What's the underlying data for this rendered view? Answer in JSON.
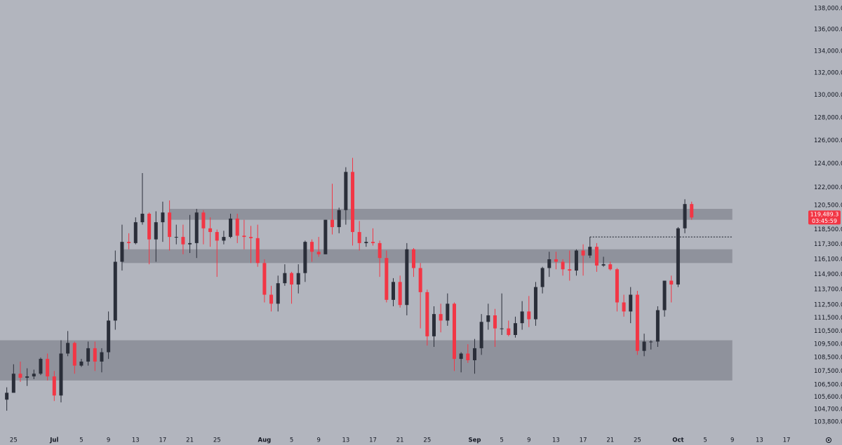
{
  "chart_data": {
    "type": "candlestick",
    "log_scale": true,
    "grid": false,
    "up_color": "#2a2e39",
    "down_color": "#f23645",
    "zone_color": "#787b86",
    "x": [
      "Jun 24",
      "Jun 25",
      "Jun 26",
      "Jun 27",
      "Jun 28",
      "Jun 29",
      "Jun 30",
      "Jul 1",
      "Jul 2",
      "Jul 3",
      "Jul 4",
      "Jul 5",
      "Jul 6",
      "Jul 7",
      "Jul 8",
      "Jul 9",
      "Jul 10",
      "Jul 11",
      "Jul 12",
      "Jul 13",
      "Jul 14",
      "Jul 15",
      "Jul 16",
      "Jul 17",
      "Jul 18",
      "Jul 19",
      "Jul 20",
      "Jul 21",
      "Jul 22",
      "Jul 23",
      "Jul 24",
      "Jul 25",
      "Jul 26",
      "Jul 27",
      "Jul 28",
      "Jul 29",
      "Jul 30",
      "Jul 31",
      "Aug 1",
      "Aug 2",
      "Aug 3",
      "Aug 4",
      "Aug 5",
      "Aug 6",
      "Aug 7",
      "Aug 8",
      "Aug 9",
      "Aug 10",
      "Aug 11",
      "Aug 12",
      "Aug 13",
      "Aug 14",
      "Aug 15",
      "Aug 16",
      "Aug 17",
      "Aug 18",
      "Aug 19",
      "Aug 20",
      "Aug 21",
      "Aug 22",
      "Aug 23",
      "Aug 24",
      "Aug 25",
      "Aug 26",
      "Aug 27",
      "Aug 28",
      "Aug 29",
      "Aug 30",
      "Aug 31",
      "Sep 1",
      "Sep 2",
      "Sep 3",
      "Sep 4",
      "Sep 5",
      "Sep 6",
      "Sep 7",
      "Sep 8",
      "Sep 9",
      "Sep 10",
      "Sep 11",
      "Sep 12",
      "Sep 13",
      "Sep 14",
      "Sep 15",
      "Sep 16",
      "Sep 17",
      "Sep 18",
      "Sep 19",
      "Sep 20",
      "Sep 21",
      "Sep 22",
      "Sep 23",
      "Sep 24",
      "Sep 25",
      "Sep 26",
      "Sep 27",
      "Sep 28",
      "Sep 29",
      "Sep 30",
      "Oct 1",
      "Oct 2",
      "Oct 3"
    ],
    "open": [
      105400,
      105900,
      107300,
      107000,
      107100,
      107300,
      108400,
      107100,
      105700,
      108800,
      109600,
      107900,
      108200,
      109200,
      108200,
      108900,
      111300,
      115900,
      117500,
      117400,
      119100,
      119800,
      117700,
      119100,
      119900,
      117900,
      117900,
      117300,
      117400,
      119900,
      118600,
      118300,
      117600,
      117900,
      119400,
      118000,
      117900,
      117800,
      115800,
      113300,
      112600,
      114200,
      115000,
      114100,
      115000,
      117500,
      116700,
      116500,
      119300,
      118700,
      120100,
      123300,
      118300,
      117400,
      117500,
      117400,
      116200,
      112900,
      114300,
      112500,
      116900,
      115400,
      113500,
      110100,
      111800,
      111300,
      112600,
      108400,
      108800,
      108300,
      109200,
      111200,
      111700,
      110700,
      110700,
      110200,
      111100,
      112000,
      111400,
      113900,
      115400,
      116100,
      115900,
      115300,
      115200,
      116800,
      116400,
      117100,
      115600,
      115700,
      115300,
      112700,
      112000,
      113300,
      109000,
      109700,
      109700,
      112100,
      114400,
      114100,
      118600,
      120600
    ],
    "high": [
      106300,
      108000,
      108200,
      107700,
      107600,
      108500,
      108800,
      107500,
      109800,
      110500,
      109700,
      108400,
      109700,
      109700,
      109200,
      112000,
      116800,
      118900,
      118200,
      119500,
      123200,
      119900,
      120000,
      120800,
      120900,
      118900,
      118900,
      119700,
      120200,
      120100,
      119500,
      118500,
      118400,
      119800,
      119800,
      119300,
      118800,
      118900,
      116100,
      114000,
      114800,
      115700,
      115100,
      115700,
      117600,
      117700,
      117900,
      119300,
      122300,
      120300,
      123700,
      124500,
      119200,
      117900,
      118600,
      117600,
      116800,
      114600,
      114800,
      117400,
      117000,
      115800,
      113700,
      112400,
      112600,
      113400,
      112700,
      108900,
      109500,
      109900,
      111800,
      112600,
      112200,
      113400,
      111300,
      111600,
      112800,
      113200,
      114300,
      115500,
      116700,
      116700,
      116100,
      116800,
      116900,
      117300,
      117900,
      117400,
      116300,
      115900,
      115400,
      113300,
      113900,
      113600,
      110300,
      109800,
      112400,
      114400,
      114800,
      118700,
      121000,
      120800
    ],
    "low": [
      104600,
      105900,
      106700,
      106400,
      106900,
      107200,
      106800,
      105300,
      105200,
      108600,
      107300,
      107800,
      107900,
      107500,
      107400,
      108400,
      110600,
      115200,
      116900,
      117300,
      118900,
      115700,
      115900,
      117500,
      116800,
      117300,
      116500,
      116600,
      116200,
      117300,
      117100,
      114700,
      117300,
      117800,
      117400,
      116900,
      115800,
      115500,
      112700,
      112000,
      112000,
      114000,
      112600,
      113400,
      114300,
      115900,
      116300,
      116500,
      118100,
      118200,
      118900,
      117200,
      116800,
      117100,
      117200,
      114700,
      112700,
      112400,
      112300,
      111700,
      114700,
      110700,
      109400,
      109300,
      110400,
      110900,
      107500,
      107400,
      108100,
      107300,
      108700,
      110600,
      109300,
      110200,
      110100,
      110000,
      110600,
      110800,
      110900,
      113400,
      114700,
      115300,
      114800,
      114400,
      114800,
      114800,
      116200,
      115100,
      115500,
      115200,
      112000,
      111600,
      111100,
      108700,
      108600,
      109100,
      109300,
      111600,
      112700,
      113900,
      118200,
      119300
    ],
    "close": [
      105900,
      107300,
      107000,
      107100,
      107300,
      108400,
      107100,
      105700,
      108800,
      109600,
      107900,
      108200,
      109200,
      108200,
      108900,
      111300,
      115900,
      117500,
      117400,
      119100,
      119800,
      117700,
      119100,
      119900,
      117900,
      117900,
      117300,
      117400,
      119900,
      118600,
      118300,
      117600,
      117900,
      119400,
      118000,
      117900,
      117800,
      115800,
      113300,
      112600,
      114200,
      115000,
      114100,
      115000,
      117500,
      116700,
      116500,
      119300,
      118700,
      120100,
      123300,
      118300,
      117400,
      117500,
      117400,
      116200,
      112900,
      114300,
      112500,
      116900,
      115400,
      113500,
      110100,
      111800,
      111300,
      112600,
      108400,
      108800,
      108300,
      109200,
      111200,
      111700,
      110700,
      110700,
      110200,
      111100,
      112000,
      111400,
      113900,
      115400,
      116100,
      115900,
      115300,
      115200,
      116800,
      116400,
      117100,
      115600,
      115700,
      115300,
      112700,
      112000,
      113300,
      109000,
      109700,
      109700,
      112100,
      114400,
      114100,
      118600,
      120600,
      119489.3
    ],
    "price_label": "119,489.3",
    "countdown": "03:45:59",
    "zones": [
      {
        "low": 119300,
        "high": 120200,
        "start": "Jul 18",
        "end": "Oct 9"
      },
      {
        "low": 115800,
        "high": 116900,
        "start": "Jul 11",
        "end": "Oct 9"
      },
      {
        "low": 106800,
        "high": 109800,
        "start": "Jun 23",
        "end": "Oct 9"
      }
    ],
    "levels": [
      {
        "value": 117900,
        "start": "Sep 18",
        "end": "Oct 9"
      }
    ],
    "xlim": [
      "Jun 23",
      "Oct 20"
    ],
    "xticks": [
      {
        "value": "Jun 25",
        "label": "25"
      },
      {
        "value": "Jul 1",
        "label": "Jul"
      },
      {
        "value": "Jul 5",
        "label": "5"
      },
      {
        "value": "Jul 9",
        "label": "9"
      },
      {
        "value": "Jul 13",
        "label": "13"
      },
      {
        "value": "Jul 17",
        "label": "17"
      },
      {
        "value": "Jul 21",
        "label": "21"
      },
      {
        "value": "Jul 25",
        "label": "25"
      },
      {
        "value": "Aug 1",
        "label": "Aug"
      },
      {
        "value": "Aug 5",
        "label": "5"
      },
      {
        "value": "Aug 9",
        "label": "9"
      },
      {
        "value": "Aug 13",
        "label": "13"
      },
      {
        "value": "Aug 17",
        "label": "17"
      },
      {
        "value": "Aug 21",
        "label": "21"
      },
      {
        "value": "Aug 25",
        "label": "25"
      },
      {
        "value": "Sep 1",
        "label": "Sep"
      },
      {
        "value": "Sep 5",
        "label": "5"
      },
      {
        "value": "Sep 9",
        "label": "9"
      },
      {
        "value": "Sep 13",
        "label": "13"
      },
      {
        "value": "Sep 17",
        "label": "17"
      },
      {
        "value": "Sep 21",
        "label": "21"
      },
      {
        "value": "Sep 25",
        "label": "25"
      },
      {
        "value": "Oct 1",
        "label": "Oct"
      },
      {
        "value": "Oct 5",
        "label": "5"
      },
      {
        "value": "Oct 9",
        "label": "9"
      },
      {
        "value": "Oct 13",
        "label": "13"
      },
      {
        "value": "Oct 17",
        "label": "17"
      }
    ],
    "ylim": [
      102900,
      138800
    ],
    "yticks": [
      {
        "value": 138000,
        "label": "138,000.0"
      },
      {
        "value": 136000,
        "label": "136,000.0"
      },
      {
        "value": 134000,
        "label": "134,000.0"
      },
      {
        "value": 132000,
        "label": "132,000.0"
      },
      {
        "value": 130000,
        "label": "130,000.0"
      },
      {
        "value": 128000,
        "label": "128,000.0"
      },
      {
        "value": 126000,
        "label": "126,000.0"
      },
      {
        "value": 124000,
        "label": "124,000.0"
      },
      {
        "value": 122000,
        "label": "122,000.0"
      },
      {
        "value": 120500,
        "label": "120,500.0"
      },
      {
        "value": 118500,
        "label": "118,500.0"
      },
      {
        "value": 117300,
        "label": "117,300.0"
      },
      {
        "value": 116100,
        "label": "116,100.0"
      },
      {
        "value": 114900,
        "label": "114,900.0"
      },
      {
        "value": 113700,
        "label": "113,700.0"
      },
      {
        "value": 112500,
        "label": "112,500.0"
      },
      {
        "value": 111500,
        "label": "111,500.0"
      },
      {
        "value": 110500,
        "label": "110,500.0"
      },
      {
        "value": 109500,
        "label": "109,500.0"
      },
      {
        "value": 108500,
        "label": "108,500.0"
      },
      {
        "value": 107500,
        "label": "107,500.0"
      },
      {
        "value": 106500,
        "label": "106,500.0"
      },
      {
        "value": 105600,
        "label": "105,600.0"
      },
      {
        "value": 104700,
        "label": "104,700.0"
      },
      {
        "value": 103800,
        "label": "103,800.0"
      }
    ]
  }
}
